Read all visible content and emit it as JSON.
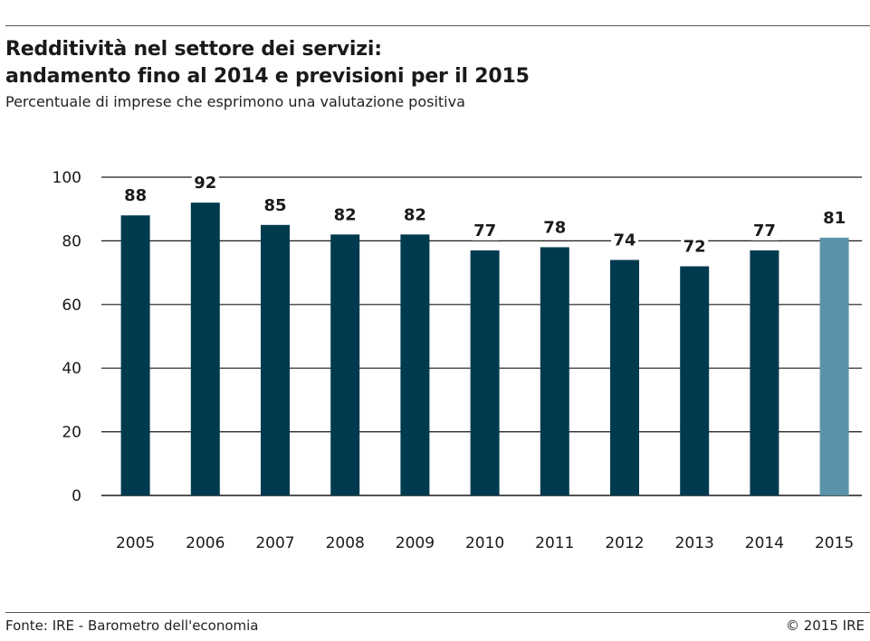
{
  "header": {
    "title_line1": "Redditività nel settore dei servizi:",
    "title_line2": "andamento fino al 2014 e previsioni per il 2015",
    "subtitle": "Percentuale di imprese che esprimono una valutazione positiva"
  },
  "footer": {
    "source": "Fonte: IRE - Barometro dell'economia",
    "copyright": "© 2015 IRE"
  },
  "colors": {
    "actual": "#003a4f",
    "forecast": "#5a93a9",
    "grid": "#1a1a1a"
  },
  "chart_data": {
    "type": "bar",
    "title": "Redditività nel settore dei servizi: andamento fino al 2014 e previsioni per il 2015",
    "subtitle": "Percentuale di imprese che esprimono una valutazione positiva",
    "categories": [
      "2005",
      "2006",
      "2007",
      "2008",
      "2009",
      "2010",
      "2011",
      "2012",
      "2013",
      "2014",
      "2015"
    ],
    "values": [
      88,
      92,
      85,
      82,
      82,
      77,
      78,
      74,
      72,
      77,
      81
    ],
    "forecast_categories": [
      "2015"
    ],
    "ylim": [
      0,
      100
    ],
    "yticks": [
      0,
      20,
      40,
      60,
      80,
      100
    ],
    "grid": true,
    "legend": "none"
  }
}
